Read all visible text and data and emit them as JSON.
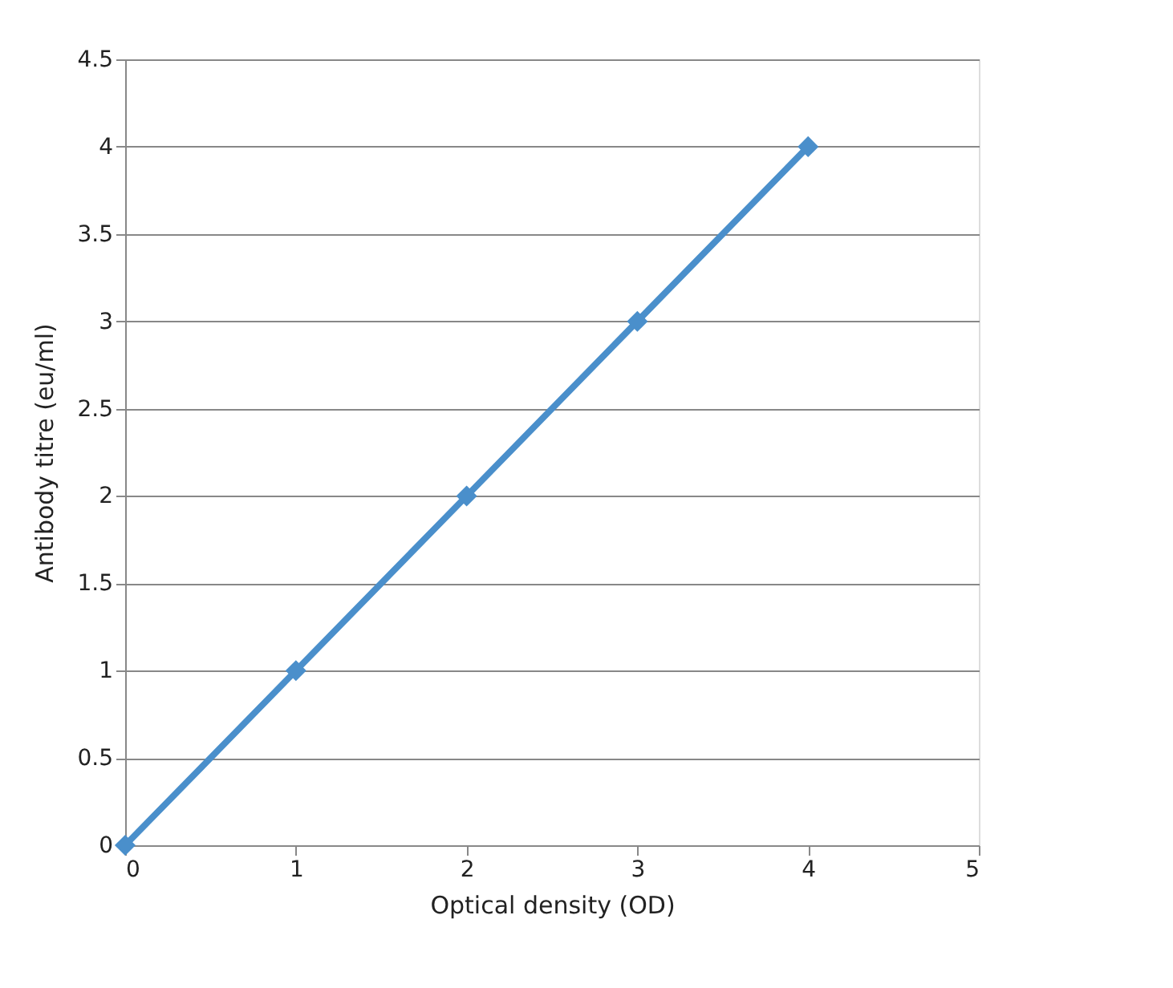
{
  "chart_data": {
    "type": "line",
    "xlabel": "Optical density (OD)",
    "ylabel": "Antibody titre  (eu/ml)",
    "x": [
      0,
      1,
      2,
      3,
      4
    ],
    "series": [
      {
        "color": "#4a8fcb",
        "values": [
          0,
          1,
          2,
          3,
          4
        ]
      }
    ],
    "xlim": [
      0,
      5
    ],
    "xticks": [
      0,
      1,
      2,
      3,
      4,
      5
    ],
    "ylim": [
      0,
      4.5
    ],
    "yticks": [
      0,
      0.5,
      1,
      1.5,
      2,
      2.5,
      3,
      3.5,
      4,
      4.5
    ],
    "grid": "y",
    "marker": "diamond",
    "line_style": "solid"
  }
}
